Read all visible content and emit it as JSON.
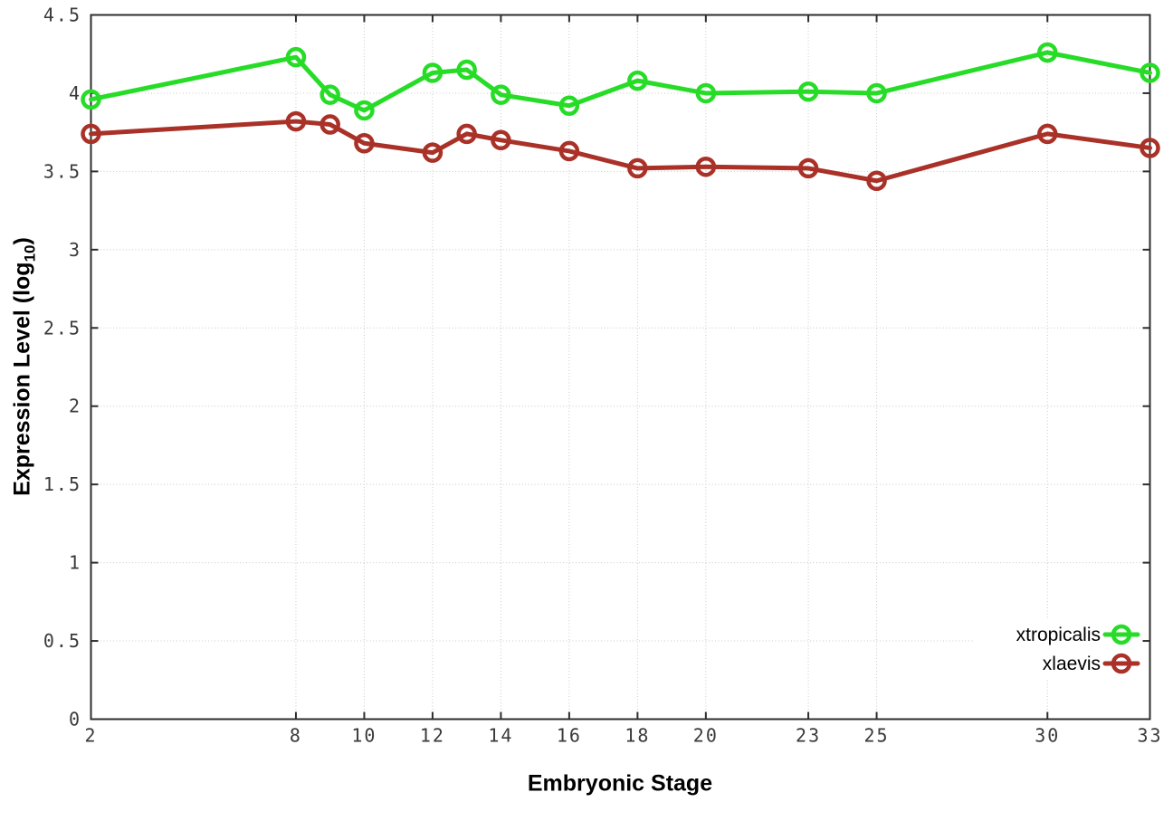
{
  "chart_data": {
    "type": "line",
    "title": "",
    "xlabel": "Embryonic Stage",
    "ylabel": "Expression Level (log10)",
    "ylabel_parts": {
      "prefix": "Expression Level (log",
      "sub": "10",
      "suffix": ")"
    },
    "x": [
      2,
      8,
      9,
      10,
      12,
      13,
      14,
      16,
      18,
      20,
      23,
      25,
      30,
      33
    ],
    "series": [
      {
        "name": "xtropicalis",
        "color": "#26dc26",
        "values": [
          3.96,
          4.23,
          3.99,
          3.89,
          4.13,
          4.15,
          3.99,
          3.92,
          4.08,
          4.0,
          4.01,
          4.0,
          4.26,
          4.13
        ]
      },
      {
        "name": "xlaevis",
        "color": "#a93127",
        "values": [
          3.74,
          3.82,
          3.8,
          3.68,
          3.62,
          3.74,
          3.7,
          3.63,
          3.52,
          3.53,
          3.52,
          3.44,
          3.74,
          3.65
        ]
      }
    ],
    "xticks": [
      2,
      8,
      10,
      12,
      14,
      16,
      18,
      20,
      23,
      25,
      30,
      33
    ],
    "yticks": [
      0,
      0.5,
      1,
      1.5,
      2,
      2.5,
      3,
      3.5,
      4,
      4.5
    ],
    "xlim": [
      2,
      33
    ],
    "ylim": [
      0,
      4.5
    ],
    "grid": true,
    "marker": "open-circle",
    "legend_position": "bottom-right",
    "colors": {
      "axis": "#2d2d2d",
      "grid": "#c9c9c9",
      "tick_text": "#3a3a3a",
      "label_text": "#000000",
      "background": "#ffffff"
    }
  }
}
